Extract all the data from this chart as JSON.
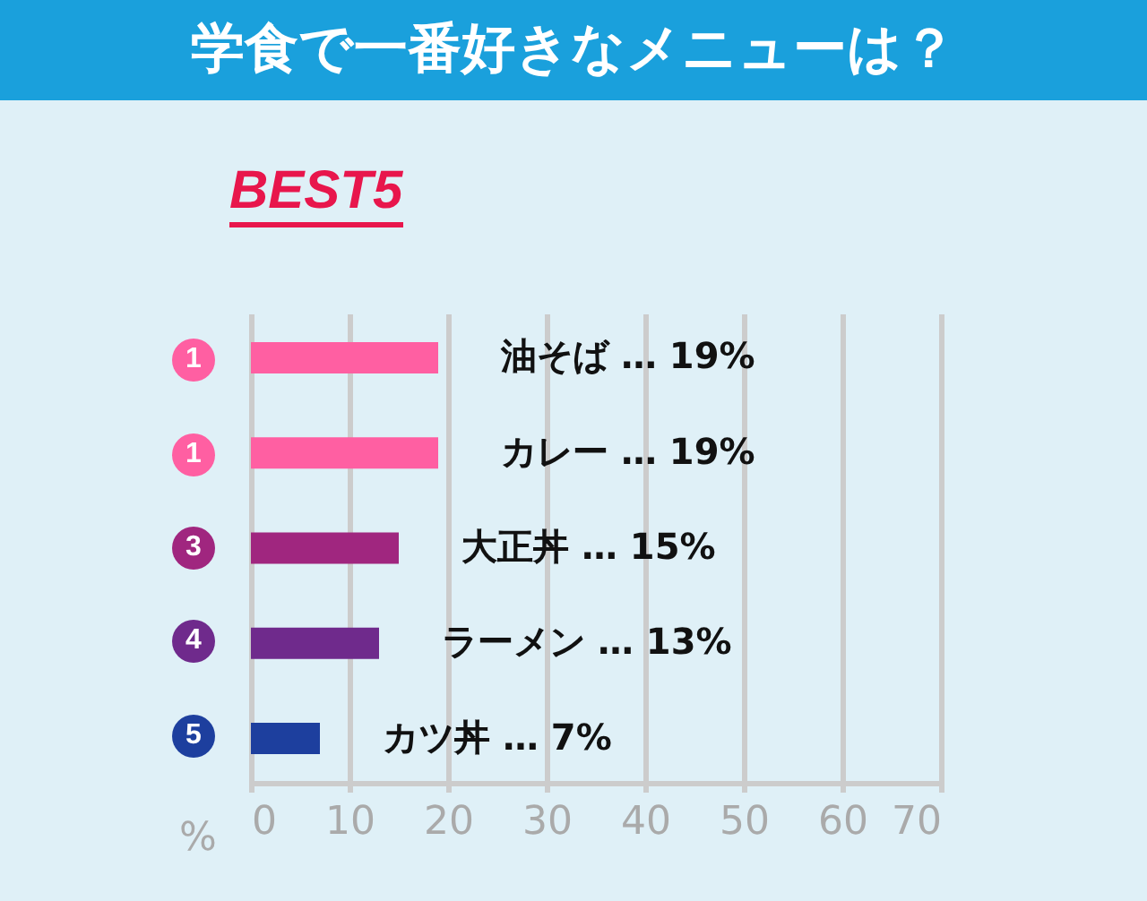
{
  "chart_data": {
    "type": "bar",
    "orientation": "horizontal",
    "title": "学食で一番好きなメニューは？",
    "subtitle": "BEST5",
    "xlabel": "%",
    "categories": [
      "油そば",
      "カレー",
      "大正丼",
      "ラーメン",
      "カツ丼"
    ],
    "values": [
      19,
      19,
      15,
      13,
      7
    ],
    "colors": [
      "#ff5fa2",
      "#ff5fa2",
      "#a0267f",
      "#6f2a8c",
      "#1d3f9e"
    ],
    "value_labels": [
      "… 19%",
      "… 19%",
      "… 15%",
      "… 13%",
      "… 7%"
    ],
    "annotations": [
      "1",
      "1",
      "3",
      "4",
      "5"
    ],
    "xlim": [
      0,
      70
    ],
    "xticks": [
      0,
      10,
      20,
      30,
      40,
      50,
      60,
      70
    ],
    "grid": "x"
  }
}
